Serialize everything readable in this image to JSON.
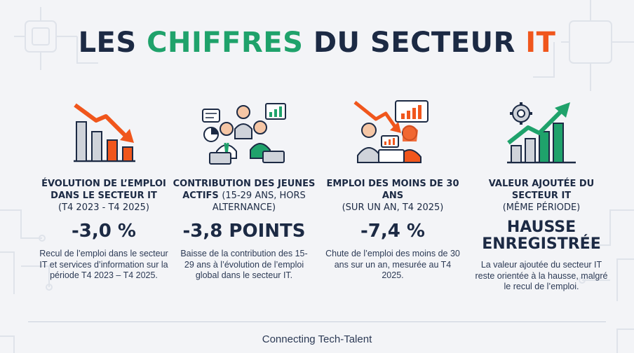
{
  "title": {
    "part1": "LES ",
    "part2": "CHIFFRES",
    "part3": " DU SECTEUR ",
    "part4": "IT"
  },
  "colors": {
    "navy": "#1c2a44",
    "green": "#1fa26b",
    "orange": "#f0561c",
    "background": "#f3f4f7"
  },
  "stats": [
    {
      "icon": "declining-bar-chart-icon",
      "heading_bold": "ÉVOLUTION DE L’EMPLOI DANS LE SECTEUR IT",
      "heading_sub": "(T4 2023 - T4 2025)",
      "value": "-3,0 %",
      "description": "Recul de l’emploi dans le secteur IT et services d’information sur la période T4 2023 – T4 2025."
    },
    {
      "icon": "young-workers-team-icon",
      "heading_bold": "CONTRIBUTION DES JEUNES ACTIFS",
      "heading_sub": "(15-29 ANS, HORS ALTERNANCE)",
      "value": "-3,8 POINTS",
      "description": "Baisse de la contribution des 15-29 ans à l’évolution de l’emploi global dans le secteur IT."
    },
    {
      "icon": "young-workers-declining-icon",
      "heading_bold": "EMPLOI DES MOINS DE 30 ANS",
      "heading_sub": "(SUR UN AN, T4 2025)",
      "value": "-7,4 %",
      "description": "Chute de l’emploi des moins de 30 ans sur un an, mesurée au T4 2025."
    },
    {
      "icon": "rising-value-chart-icon",
      "heading_bold": "VALEUR AJOUTÉE DU SECTEUR IT",
      "heading_sub": "(MÊME PÉRIODE)",
      "value": "HAUSSE ENREGISTRÉE",
      "description": "La valeur ajoutée du secteur IT reste orientée à la hausse, malgré le recul de l’emploi."
    }
  ],
  "footer": "Connecting Tech-Talent"
}
